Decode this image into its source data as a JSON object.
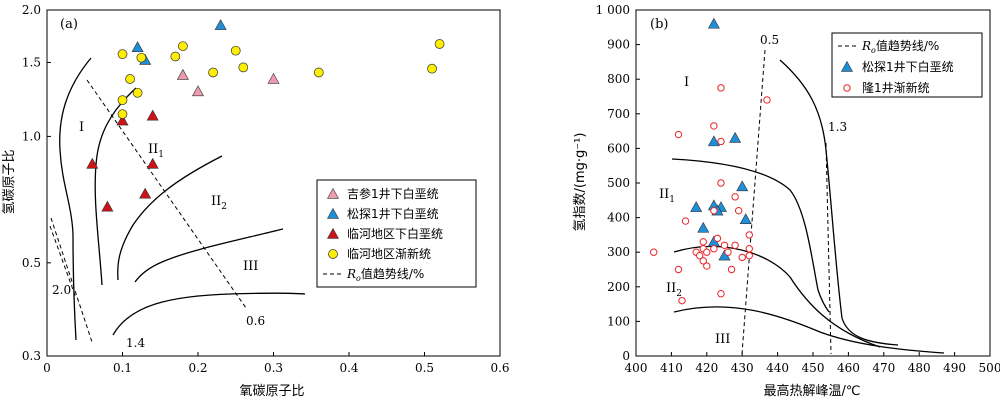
{
  "chart_data": [
    {
      "type": "scatter",
      "panel_label": "(a)",
      "xlabel": "氧碳原子比",
      "ylabel": "氢碳原子比",
      "xlim": [
        0,
        0.6
      ],
      "ylim": [
        0.3,
        2.0
      ],
      "y_scale": "log",
      "x_ticks": [
        "0",
        "0.1",
        "0.2",
        "0.3",
        "0.4",
        "0.5",
        "0.6"
      ],
      "y_ticks": [
        "0.3",
        "0.5",
        "1.0",
        "1.5",
        "2.0"
      ],
      "legend_position": "right",
      "series": [
        {
          "name": "吉参1井下白垩统",
          "marker": "triangle",
          "color": "#ee9ab0",
          "points": [
            [
              0.18,
              1.4
            ],
            [
              0.2,
              1.28
            ],
            [
              0.3,
              1.37
            ]
          ]
        },
        {
          "name": "松探1井下白垩统",
          "marker": "triangle",
          "color": "#1f8ed8",
          "points": [
            [
              0.12,
              1.63
            ],
            [
              0.13,
              1.52
            ],
            [
              0.23,
              1.84
            ]
          ]
        },
        {
          "name": "临河地区下白垩统",
          "marker": "triangle",
          "color": "#cc1418",
          "points": [
            [
              0.06,
              0.86
            ],
            [
              0.08,
              0.68
            ],
            [
              0.1,
              1.09
            ],
            [
              0.14,
              1.12
            ],
            [
              0.14,
              0.86
            ],
            [
              0.13,
              0.73
            ]
          ]
        },
        {
          "name": "临河地区渐新统",
          "marker": "circle",
          "color": "#ffee00",
          "points": [
            [
              0.1,
              1.57
            ],
            [
              0.1,
              1.22
            ],
            [
              0.1,
              1.13
            ],
            [
              0.11,
              1.37
            ],
            [
              0.12,
              1.27
            ],
            [
              0.125,
              1.54
            ],
            [
              0.17,
              1.55
            ],
            [
              0.18,
              1.64
            ],
            [
              0.22,
              1.42
            ],
            [
              0.25,
              1.6
            ],
            [
              0.26,
              1.46
            ],
            [
              0.36,
              1.42
            ],
            [
              0.51,
              1.45
            ],
            [
              0.52,
              1.66
            ]
          ]
        }
      ],
      "region_labels": [
        {
          "id": "I",
          "text": "I",
          "sub": ""
        },
        {
          "id": "II1",
          "text": "II",
          "sub": "1"
        },
        {
          "id": "II2",
          "text": "II",
          "sub": "2"
        },
        {
          "id": "III",
          "text": "III",
          "sub": ""
        }
      ],
      "trend_legend": "Ro值趋势线/%",
      "trend_labels": [
        "2.0",
        "1.4",
        "0.6"
      ]
    },
    {
      "type": "scatter",
      "panel_label": "(b)",
      "xlabel": "最高热解峰温/℃",
      "ylabel": "氢指数/(mg·g⁻¹)",
      "xlim": [
        400,
        500
      ],
      "ylim": [
        0,
        1000
      ],
      "x_ticks": [
        "400",
        "410",
        "420",
        "430",
        "440",
        "450",
        "460",
        "470",
        "480",
        "490",
        "500"
      ],
      "y_ticks": [
        "0",
        "100",
        "200",
        "300",
        "400",
        "500",
        "600",
        "700",
        "800",
        "900",
        "1 000"
      ],
      "legend_position": "top-right",
      "series": [
        {
          "name": "松探1井下白垩统",
          "marker": "triangle",
          "color": "#1f8ed8",
          "points": [
            [
              422,
              960
            ],
            [
              422,
              620
            ],
            [
              428,
              630
            ],
            [
              430,
              490
            ],
            [
              417,
              430
            ],
            [
              422,
              435
            ],
            [
              424,
              430
            ],
            [
              423,
              420
            ],
            [
              419,
              370
            ],
            [
              422,
              330
            ],
            [
              425,
              290
            ],
            [
              431,
              395
            ]
          ]
        },
        {
          "name": "隆1井渐新统",
          "marker": "open-circle",
          "color": "#e8262b",
          "points": [
            [
              405,
              300
            ],
            [
              412,
              640
            ],
            [
              422,
              665
            ],
            [
              424,
              775
            ],
            [
              437,
              740
            ],
            [
              424,
              500
            ],
            [
              422,
              420
            ],
            [
              428,
              460
            ],
            [
              429,
              420
            ],
            [
              414,
              390
            ],
            [
              424,
              620
            ],
            [
              417,
              300
            ],
            [
              418,
              290
            ],
            [
              419,
              330
            ],
            [
              419,
              310
            ],
            [
              419,
              275
            ],
            [
              420,
              300
            ],
            [
              420,
              260
            ],
            [
              422,
              310
            ],
            [
              423,
              340
            ],
            [
              425,
              320
            ],
            [
              426,
              300
            ],
            [
              428,
              320
            ],
            [
              430,
              285
            ],
            [
              432,
              290
            ],
            [
              432,
              310
            ],
            [
              432,
              350
            ],
            [
              427,
              250
            ],
            [
              412,
              250
            ],
            [
              424,
              180
            ],
            [
              413,
              160
            ]
          ]
        }
      ],
      "region_labels": [
        {
          "id": "I",
          "text": "I",
          "sub": ""
        },
        {
          "id": "II1",
          "text": "II",
          "sub": "1"
        },
        {
          "id": "II2",
          "text": "II",
          "sub": "2"
        },
        {
          "id": "III",
          "text": "III",
          "sub": ""
        }
      ],
      "trend_legend": "Ro值趋势线/%",
      "trend_labels": [
        "0.5",
        "1.3"
      ]
    }
  ]
}
